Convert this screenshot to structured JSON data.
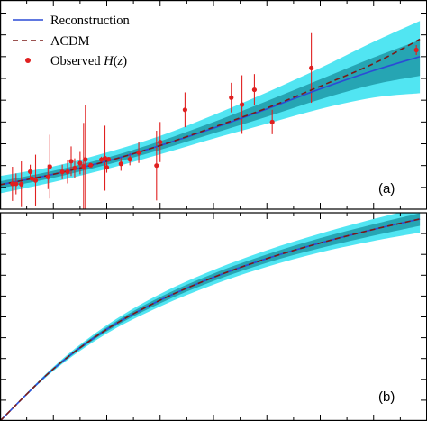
{
  "chart_data": [
    {
      "type": "line",
      "panel_label": "(a)",
      "xlim": [
        0.0,
        2.4
      ],
      "ylim": [
        40,
        280
      ],
      "colors": {
        "band_outer": "#33e0f0",
        "band_inner": "#1e9aa8",
        "reconstruction": "#2b4bd6",
        "lcdm": "#7a1a16",
        "observed": "#e02020"
      },
      "legend": {
        "placement": "top-left",
        "entries": [
          {
            "label": "Reconstruction",
            "style": "solid-line",
            "color": "#2b4bd6"
          },
          {
            "label": "ΛCDM",
            "style": "dashed-line",
            "color": "#7a1a16"
          },
          {
            "label": "Observed H(z)",
            "style": "point",
            "color": "#e02020"
          }
        ]
      },
      "reconstruction": {
        "x": [
          0.0,
          0.3,
          0.6,
          0.9,
          1.2,
          1.5,
          1.8,
          2.1,
          2.36
        ],
        "y": [
          68,
          80,
          95,
          113,
          133,
          155,
          178,
          199,
          215
        ]
      },
      "lcdm": {
        "x": [
          0.0,
          0.3,
          0.6,
          0.9,
          1.2,
          1.5,
          1.8,
          2.1,
          2.36
        ],
        "y": [
          68,
          80,
          95,
          113,
          134,
          156,
          181,
          207,
          235
        ]
      },
      "band_1sigma": {
        "x": [
          0.0,
          0.3,
          0.6,
          0.9,
          1.2,
          1.5,
          1.8,
          2.1,
          2.36
        ],
        "lower": [
          64,
          76,
          91,
          108,
          127,
          146,
          166,
          183,
          193
        ],
        "upper": [
          72,
          84,
          99,
          118,
          140,
          164,
          189,
          214,
          234
        ]
      },
      "band_2sigma": {
        "x": [
          0.0,
          0.3,
          0.6,
          0.9,
          1.2,
          1.5,
          1.8,
          2.1,
          2.36
        ],
        "lower": [
          58,
          71,
          86,
          103,
          121,
          138,
          155,
          168,
          173
        ],
        "upper": [
          78,
          89,
          105,
          124,
          148,
          174,
          202,
          232,
          256
        ]
      },
      "observed": [
        {
          "x": 0.07,
          "y": 69,
          "err": 19.6
        },
        {
          "x": 0.09,
          "y": 69,
          "err": 12
        },
        {
          "x": 0.12,
          "y": 68.6,
          "err": 26.2
        },
        {
          "x": 0.17,
          "y": 83,
          "err": 8
        },
        {
          "x": 0.18,
          "y": 75,
          "err": 4
        },
        {
          "x": 0.2,
          "y": 72.9,
          "err": 29.6
        },
        {
          "x": 0.27,
          "y": 77,
          "err": 14
        },
        {
          "x": 0.28,
          "y": 88.8,
          "err": 36.6
        },
        {
          "x": 0.35,
          "y": 82.7,
          "err": 8.4
        },
        {
          "x": 0.38,
          "y": 83,
          "err": 13.5
        },
        {
          "x": 0.4,
          "y": 95,
          "err": 17
        },
        {
          "x": 0.42,
          "y": 87.1,
          "err": 11.2
        },
        {
          "x": 0.45,
          "y": 92.8,
          "err": 12.9
        },
        {
          "x": 0.47,
          "y": 89,
          "err": 50
        },
        {
          "x": 0.48,
          "y": 97,
          "err": 62
        },
        {
          "x": 0.51,
          "y": 90.4,
          "err": 1.9
        },
        {
          "x": 0.57,
          "y": 96.8,
          "err": 3.4
        },
        {
          "x": 0.59,
          "y": 98.5,
          "err": 37.3
        },
        {
          "x": 0.6,
          "y": 87.9,
          "err": 6.1
        },
        {
          "x": 0.61,
          "y": 97.3,
          "err": 2.1
        },
        {
          "x": 0.68,
          "y": 92,
          "err": 8
        },
        {
          "x": 0.73,
          "y": 97.3,
          "err": 7
        },
        {
          "x": 0.78,
          "y": 105,
          "err": 12
        },
        {
          "x": 0.88,
          "y": 90,
          "err": 40
        },
        {
          "x": 0.9,
          "y": 117,
          "err": 23
        },
        {
          "x": 1.04,
          "y": 154,
          "err": 20
        },
        {
          "x": 1.3,
          "y": 168,
          "err": 17
        },
        {
          "x": 1.36,
          "y": 160,
          "err": 33.6
        },
        {
          "x": 1.43,
          "y": 177,
          "err": 18
        },
        {
          "x": 1.53,
          "y": 140,
          "err": 14
        },
        {
          "x": 1.75,
          "y": 202,
          "err": 40
        },
        {
          "x": 2.34,
          "y": 222.6,
          "err": 5.7
        }
      ]
    },
    {
      "type": "line",
      "panel_label": "(b)",
      "xlim": [
        0.0,
        2.4
      ],
      "ylim": [
        0.0,
        1.0
      ],
      "colors": {
        "band_outer": "#33e0f0",
        "band_inner": "#1e9aa8",
        "reconstruction": "#2b4bd6",
        "lcdm": "#7a1a16"
      },
      "reconstruction": {
        "x": [
          0.0,
          0.3,
          0.6,
          0.9,
          1.2,
          1.5,
          1.8,
          2.1,
          2.36
        ],
        "y": [
          0.0,
          0.25,
          0.44,
          0.58,
          0.69,
          0.78,
          0.855,
          0.92,
          0.97
        ]
      },
      "lcdm": {
        "x": [
          0.0,
          0.3,
          0.6,
          0.9,
          1.2,
          1.5,
          1.8,
          2.1,
          2.36
        ],
        "y": [
          0.0,
          0.25,
          0.44,
          0.58,
          0.69,
          0.78,
          0.855,
          0.92,
          0.97
        ]
      },
      "band_1sigma": {
        "x": [
          0.0,
          0.3,
          0.6,
          0.9,
          1.2,
          1.5,
          1.8,
          2.1,
          2.36
        ],
        "lower": [
          0.0,
          0.245,
          0.43,
          0.565,
          0.672,
          0.76,
          0.83,
          0.89,
          0.937
        ],
        "upper": [
          0.0,
          0.255,
          0.45,
          0.595,
          0.708,
          0.8,
          0.878,
          0.945,
          0.998
        ]
      },
      "band_2sigma": {
        "x": [
          0.0,
          0.3,
          0.6,
          0.9,
          1.2,
          1.5,
          1.8,
          2.1,
          2.36
        ],
        "lower": [
          0.0,
          0.24,
          0.42,
          0.55,
          0.655,
          0.74,
          0.81,
          0.865,
          0.905
        ],
        "upper": [
          0.0,
          0.26,
          0.46,
          0.61,
          0.725,
          0.82,
          0.9,
          0.97,
          1.025
        ]
      }
    }
  ]
}
